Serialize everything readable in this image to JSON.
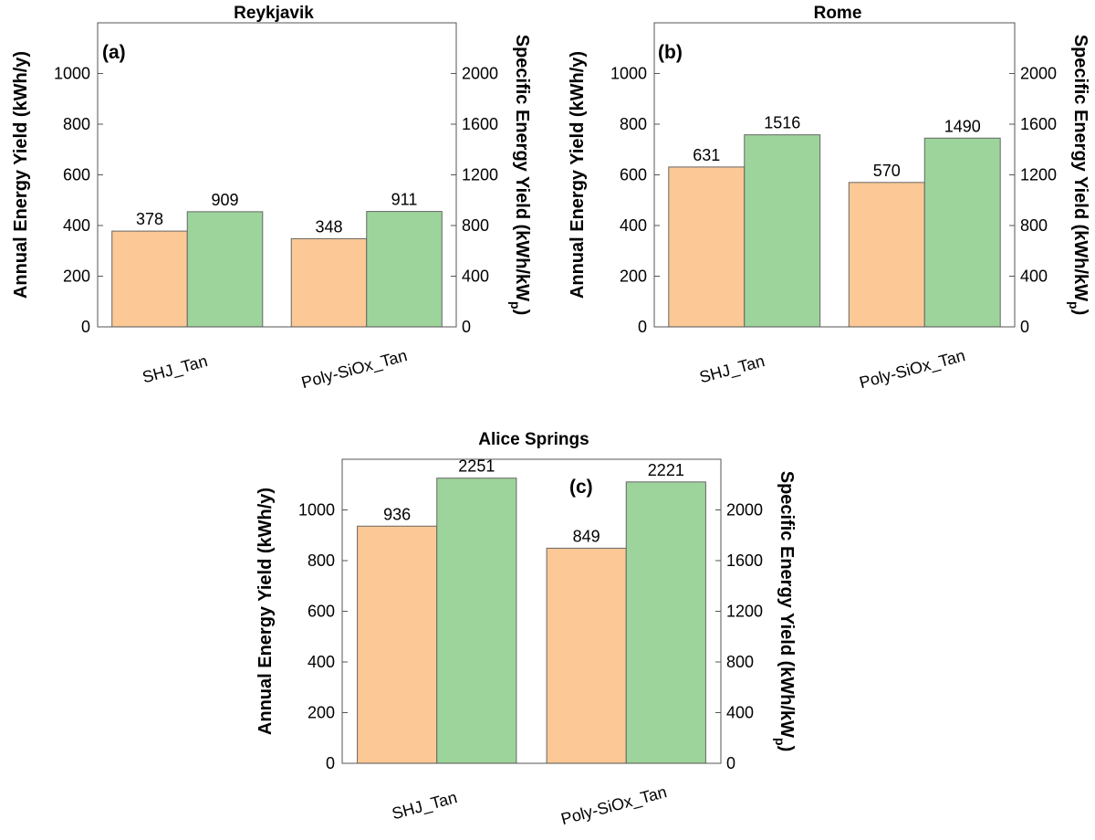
{
  "chart_data": [
    {
      "type": "bar",
      "title": "Reykjavik",
      "panel_label": "(a)",
      "categories": [
        "SHJ_Tan",
        "Poly-SiOx_Tan"
      ],
      "series": [
        {
          "name": "Annual Energy Yield",
          "axis": "left",
          "color": "#fbc896",
          "values": [
            378,
            348
          ]
        },
        {
          "name": "Specific Energy Yield",
          "axis": "right",
          "color": "#9dd49b",
          "values": [
            909,
            911
          ]
        }
      ],
      "ylabel": "Annual Energy Yield (kWh/y)",
      "ylabel_right": "Specific Energy Yield (kWh/kW",
      "ylabel_right_sub": "p",
      "ylabel_right_close": ")",
      "ylim": [
        0,
        1200
      ],
      "ylim_right": [
        0,
        2400
      ],
      "yticks": [
        0,
        200,
        400,
        600,
        800,
        1000
      ],
      "yticks_right": [
        0,
        400,
        800,
        1200,
        1600,
        2000
      ]
    },
    {
      "type": "bar",
      "title": "Rome",
      "panel_label": "(b)",
      "categories": [
        "SHJ_Tan",
        "Poly-SiOx_Tan"
      ],
      "series": [
        {
          "name": "Annual Energy Yield",
          "axis": "left",
          "color": "#fbc896",
          "values": [
            631,
            570
          ]
        },
        {
          "name": "Specific Energy Yield",
          "axis": "right",
          "color": "#9dd49b",
          "values": [
            1516,
            1490
          ]
        }
      ],
      "ylabel": "Annual Energy Yield (kWh/y)",
      "ylabel_right": "Specific Energy Yield (kWh/kW",
      "ylabel_right_sub": "p",
      "ylabel_right_close": ")",
      "ylim": [
        0,
        1200
      ],
      "ylim_right": [
        0,
        2400
      ],
      "yticks": [
        0,
        200,
        400,
        600,
        800,
        1000
      ],
      "yticks_right": [
        0,
        400,
        800,
        1200,
        1600,
        2000
      ]
    },
    {
      "type": "bar",
      "title": "Alice Springs",
      "panel_label": "(c)",
      "categories": [
        "SHJ_Tan",
        "Poly-SiOx_Tan"
      ],
      "series": [
        {
          "name": "Annual Energy Yield",
          "axis": "left",
          "color": "#fbc896",
          "values": [
            936,
            849
          ]
        },
        {
          "name": "Specific Energy Yield",
          "axis": "right",
          "color": "#9dd49b",
          "values": [
            2251,
            2221
          ]
        }
      ],
      "ylabel": "Annual Energy Yield (kWh/y)",
      "ylabel_right": "Specific Energy Yield (kWh/kW",
      "ylabel_right_sub": "p",
      "ylabel_right_close": ")",
      "ylim": [
        0,
        1200
      ],
      "ylim_right": [
        0,
        2400
      ],
      "yticks": [
        0,
        200,
        400,
        600,
        800,
        1000
      ],
      "yticks_right": [
        0,
        400,
        800,
        1200,
        1600,
        2000
      ]
    }
  ]
}
